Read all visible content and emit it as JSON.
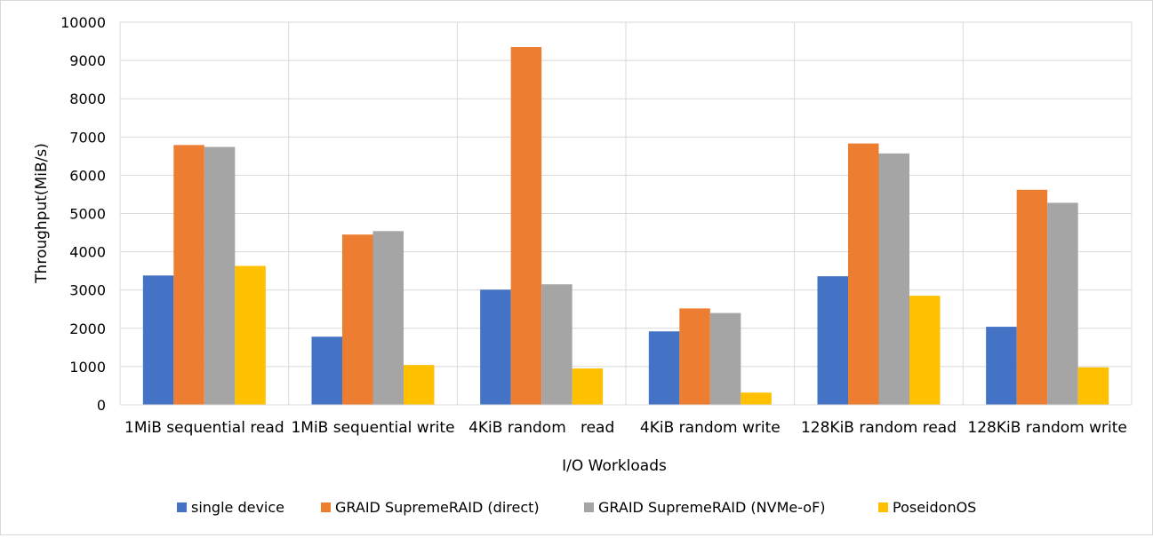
{
  "chart_data": {
    "type": "bar",
    "title": "",
    "xlabel": "I/O Workloads",
    "ylabel": "Throughput(MiB/s)",
    "ylim": [
      0,
      10000
    ],
    "yticks": [
      0,
      1000,
      2000,
      3000,
      4000,
      5000,
      6000,
      7000,
      8000,
      9000,
      10000
    ],
    "grid": true,
    "legend_position": "bottom",
    "categories": [
      "1MiB sequential read",
      "1MiB sequential write",
      "4KiB random   read",
      "4KiB random write",
      "128KiB random read",
      "128KiB random write"
    ],
    "series": [
      {
        "name": "single device",
        "color": "#4472c4",
        "values": [
          3380,
          1780,
          3010,
          1920,
          3360,
          2040
        ]
      },
      {
        "name": "GRAID SupremeRAID (direct)",
        "color": "#ed7d31",
        "values": [
          6790,
          4450,
          9350,
          2520,
          6830,
          5620
        ]
      },
      {
        "name": "GRAID SupremeRAID (NVMe-oF)",
        "color": "#a5a5a5",
        "values": [
          6740,
          4540,
          3150,
          2400,
          6570,
          5280
        ]
      },
      {
        "name": "PoseidonOS",
        "color": "#ffc000",
        "values": [
          3630,
          1040,
          950,
          320,
          2850,
          980
        ]
      }
    ]
  }
}
